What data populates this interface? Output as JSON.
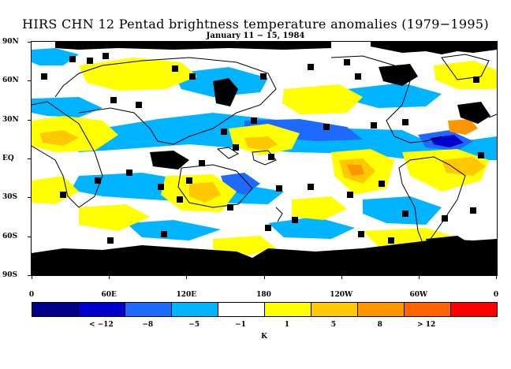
{
  "title": "HIRS CHN 12 Pentad brightness temperature anomalies (1979−1995)",
  "subtitle": "January 11 − 15, 1984",
  "y_axis": {
    "labels": [
      "90N",
      "60N",
      "30N",
      "EQ",
      "30S",
      "60S",
      "90S"
    ],
    "values": [
      90,
      60,
      30,
      0,
      -30,
      -60,
      -90
    ]
  },
  "x_axis": {
    "labels": [
      "0",
      "60E",
      "120E",
      "180",
      "120W",
      "60W",
      "0"
    ],
    "values": [
      0,
      60,
      120,
      180,
      240,
      300,
      360
    ]
  },
  "colorbar": {
    "colors": [
      "#00008b",
      "#0000cd",
      "#1e69ff",
      "#00b4ff",
      "#ffffff",
      "#ffff00",
      "#ffc800",
      "#ff9600",
      "#ff6400",
      "#ff0000"
    ],
    "labels": [
      "< −12",
      "−8",
      "−5",
      "−1",
      "1",
      "5",
      "8",
      "> 12"
    ],
    "unit": "K"
  },
  "legend_colors": {
    "no_data": "#000000",
    "coast": "#000000"
  }
}
